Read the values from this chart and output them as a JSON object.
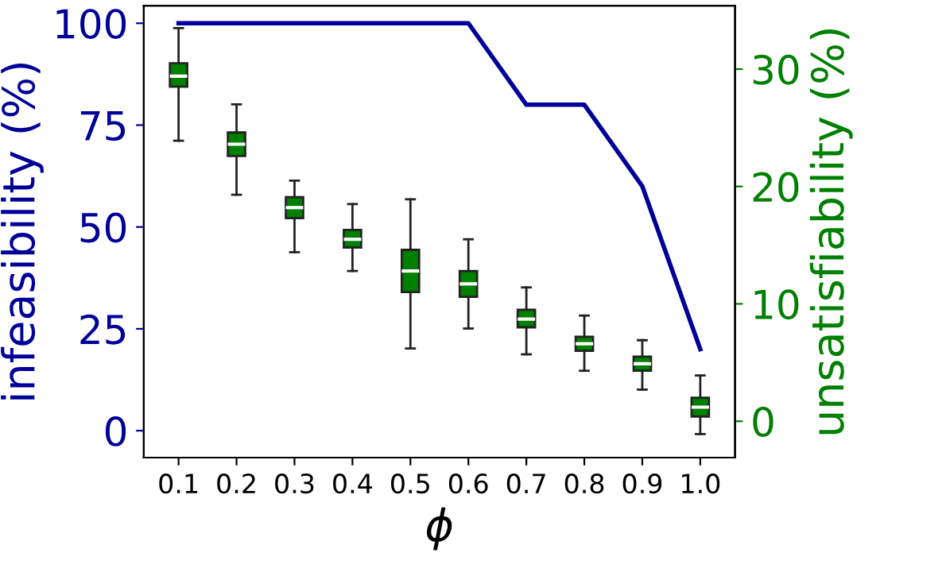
{
  "chart_data": {
    "type": "line",
    "xlabel": "ϕ",
    "ylabel": "infeasibility (%)",
    "y2label": "unsatisfiability (%)",
    "categories": [
      "0.1",
      "0.2",
      "0.3",
      "0.4",
      "0.5",
      "0.6",
      "0.7",
      "0.8",
      "0.9",
      "1.0"
    ],
    "series": [
      {
        "color": "#000099",
        "values": [
          100,
          100,
          100,
          100,
          100,
          100,
          80,
          80,
          60,
          20
        ]
      },
      {
        "type": "box",
        "axis": "y2",
        "color": "#008000",
        "boxes": [
          {
            "low": 23.9,
            "q1": 28.5,
            "median": 29.4,
            "q3": 30.5,
            "high": 33.5
          },
          {
            "low": 19.3,
            "q1": 22.6,
            "median": 23.6,
            "q3": 24.6,
            "high": 27
          },
          {
            "low": 14.4,
            "q1": 17.3,
            "median": 18.2,
            "q3": 19.1,
            "high": 20.5
          },
          {
            "low": 12.8,
            "q1": 14.8,
            "median": 15.5,
            "q3": 16.3,
            "high": 18.5
          },
          {
            "low": 6.2,
            "q1": 11,
            "median": 12.8,
            "q3": 14.6,
            "high": 18.9
          },
          {
            "low": 7.9,
            "q1": 10.6,
            "median": 11.7,
            "q3": 12.8,
            "high": 15.5
          },
          {
            "low": 5.7,
            "q1": 8,
            "median": 8.7,
            "q3": 9.5,
            "high": 11.4
          },
          {
            "low": 4.3,
            "q1": 6,
            "median": 6.6,
            "q3": 7.2,
            "high": 9
          },
          {
            "low": 2.7,
            "q1": 4.3,
            "median": 4.9,
            "q3": 5.5,
            "high": 6.9
          },
          {
            "low": -1.1,
            "q1": 0.4,
            "median": 1.2,
            "q3": 2,
            "high": 3.9
          }
        ]
      }
    ],
    "ylim": [
      -6.6,
      104.3
    ],
    "yticks": [
      0,
      25,
      50,
      75,
      100
    ],
    "y2lim": [
      -3.1,
      35.4
    ],
    "y2ticks": [
      0,
      10,
      20,
      30
    ],
    "grid": false,
    "legend": false
  }
}
